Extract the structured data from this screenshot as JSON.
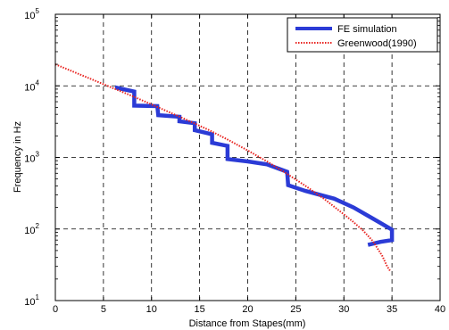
{
  "chart_data": {
    "type": "line",
    "title": "",
    "xlabel": "Distance from Stapes(mm)",
    "ylabel": "Frequency in Hz",
    "xlim": [
      0,
      40
    ],
    "ylim": [
      10,
      100000
    ],
    "yscale": "log",
    "grid": true,
    "legend_position": "top-right",
    "x_ticks": [
      "0",
      "5",
      "10",
      "15",
      "20",
      "25",
      "30",
      "35",
      "40"
    ],
    "y_ticks": [
      {
        "base": "10",
        "exp": "1",
        "value": 10
      },
      {
        "base": "10",
        "exp": "2",
        "value": 100
      },
      {
        "base": "10",
        "exp": "3",
        "value": 1000
      },
      {
        "base": "10",
        "exp": "4",
        "value": 10000
      },
      {
        "base": "10",
        "exp": "5",
        "value": 100000
      }
    ],
    "series": [
      {
        "name": "FE simulation",
        "color": "#2b3bd6",
        "style": "solid-thick",
        "points": [
          {
            "x": 6.2,
            "y": 9500
          },
          {
            "x": 8.2,
            "y": 8300
          },
          {
            "x": 8.2,
            "y": 5300
          },
          {
            "x": 10.6,
            "y": 5200
          },
          {
            "x": 10.7,
            "y": 3900
          },
          {
            "x": 12.9,
            "y": 3700
          },
          {
            "x": 12.9,
            "y": 3200
          },
          {
            "x": 14.5,
            "y": 3000
          },
          {
            "x": 14.5,
            "y": 2400
          },
          {
            "x": 16.3,
            "y": 2100
          },
          {
            "x": 16.3,
            "y": 1600
          },
          {
            "x": 17.9,
            "y": 1450
          },
          {
            "x": 17.9,
            "y": 950
          },
          {
            "x": 20.0,
            "y": 880
          },
          {
            "x": 22.0,
            "y": 800
          },
          {
            "x": 24.1,
            "y": 630
          },
          {
            "x": 24.2,
            "y": 410
          },
          {
            "x": 26.0,
            "y": 340
          },
          {
            "x": 29.0,
            "y": 265
          },
          {
            "x": 31.0,
            "y": 200
          },
          {
            "x": 33.0,
            "y": 140
          },
          {
            "x": 35.0,
            "y": 98
          },
          {
            "x": 35.0,
            "y": 70
          },
          {
            "x": 33.8,
            "y": 66
          },
          {
            "x": 32.5,
            "y": 60
          }
        ]
      },
      {
        "name": "Greenwood(1990)",
        "color": "#e8231f",
        "style": "dotted",
        "points": [
          {
            "x": 0,
            "y": 20000
          },
          {
            "x": 2,
            "y": 15500
          },
          {
            "x": 4,
            "y": 12000
          },
          {
            "x": 6,
            "y": 9300
          },
          {
            "x": 8,
            "y": 7200
          },
          {
            "x": 10,
            "y": 5500
          },
          {
            "x": 12,
            "y": 4200
          },
          {
            "x": 14,
            "y": 3200
          },
          {
            "x": 16,
            "y": 2400
          },
          {
            "x": 18,
            "y": 1750
          },
          {
            "x": 20,
            "y": 1250
          },
          {
            "x": 22,
            "y": 880
          },
          {
            "x": 24,
            "y": 600
          },
          {
            "x": 26,
            "y": 400
          },
          {
            "x": 28,
            "y": 260
          },
          {
            "x": 30,
            "y": 160
          },
          {
            "x": 31,
            "y": 125
          },
          {
            "x": 32,
            "y": 95
          },
          {
            "x": 33,
            "y": 68
          },
          {
            "x": 34,
            "y": 42
          },
          {
            "x": 34.5,
            "y": 30
          },
          {
            "x": 34.8,
            "y": 26
          }
        ]
      }
    ]
  }
}
